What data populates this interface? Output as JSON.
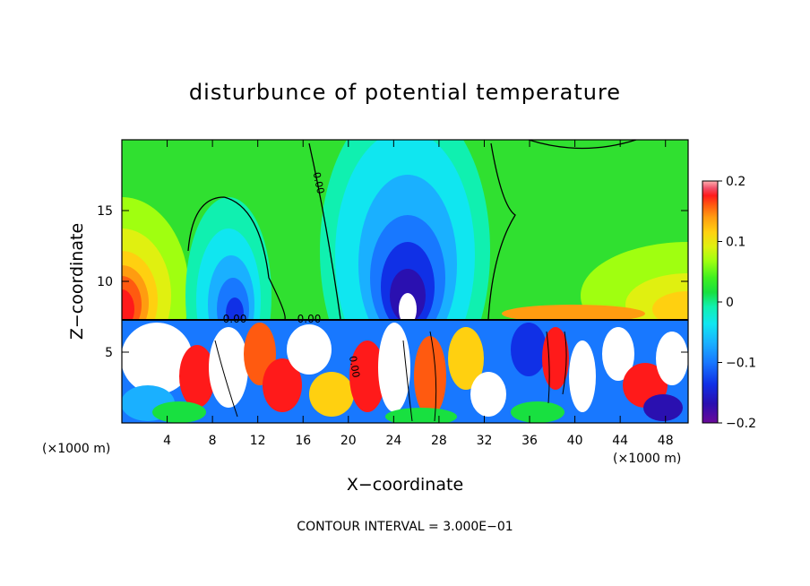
{
  "chart_data": {
    "type": "heatmap",
    "title": "disturbunce of potential temperature",
    "xlabel": "X−coordinate",
    "ylabel": "Z−coordinate",
    "x_unit_left": "(×1000 m)",
    "x_unit_right": "(×1000 m)",
    "footer": "CONTOUR INTERVAL = 3.000E−01",
    "xlim": [
      0,
      50
    ],
    "ylim": [
      0,
      20
    ],
    "x_ticks": [
      4,
      8,
      12,
      16,
      20,
      24,
      28,
      32,
      36,
      40,
      44,
      48
    ],
    "y_ticks": [
      5,
      10,
      15
    ],
    "colorbar": {
      "range": [
        -0.2,
        0.2
      ],
      "tick_values": [
        0.2,
        0.1,
        0,
        -0.1,
        -0.2
      ],
      "tick_labels": [
        "0.2",
        "0.1",
        "0",
        "−0.1",
        "−0.2"
      ]
    },
    "contour_labels": [
      "0.00",
      "0.00",
      "0.00",
      "0.00"
    ],
    "colors": {
      "palette": [
        "#6a0a9a",
        "#2a10b0",
        "#1030e6",
        "#1878ff",
        "#1ab0ff",
        "#10e6f0",
        "#10f0b0",
        "#18e040",
        "#40f020",
        "#a0ff10",
        "#e0f010",
        "#ffd010",
        "#ff9c10",
        "#ff5a10",
        "#ff1a1a",
        "#f0506a",
        "#ffb0b0"
      ]
    },
    "grid": false
  }
}
